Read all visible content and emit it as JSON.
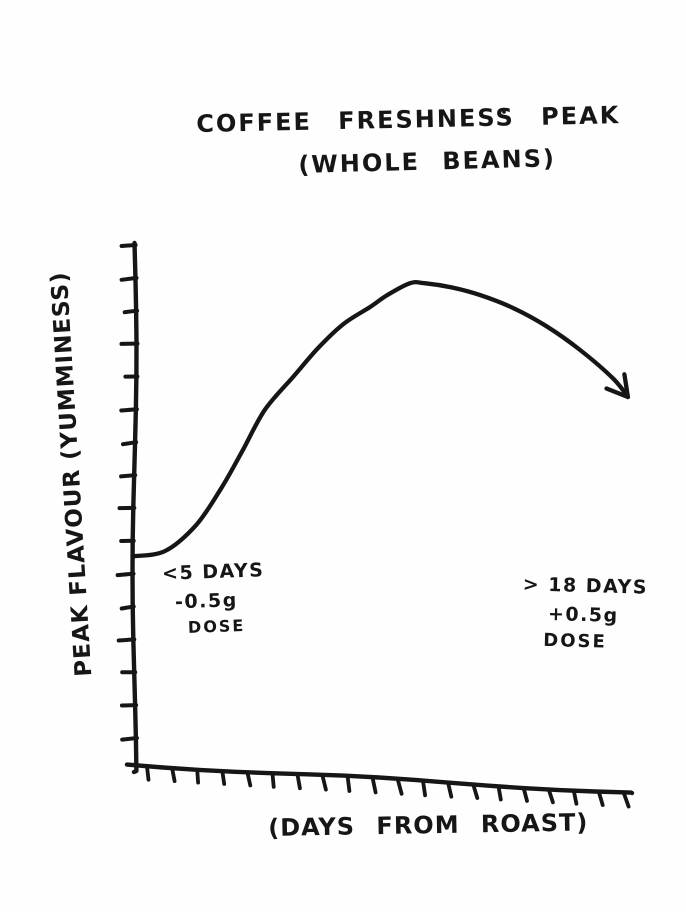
{
  "page": {
    "background": "#fefefe",
    "ink": "#161616"
  },
  "chart_data": {
    "type": "line",
    "style": "hand-drawn-marker-sketch",
    "title": "COFFEE FRESHNESS PEAK",
    "subtitle": "(WHOLE BEANS)",
    "xlabel": "(DAYS FROM ROAST)",
    "ylabel": "PEAK FLAVOUR (YUMMINESS)",
    "grid": false,
    "legend": false,
    "x_range_days": [
      0,
      24
    ],
    "y_range_yumminess": [
      0,
      1
    ],
    "x_tick_count": 20,
    "y_tick_count": 16,
    "x_tick_labels": [],
    "y_tick_labels": [],
    "series": [
      {
        "name": "coffee-freshness-curve",
        "ends_with_arrow": true,
        "x_days": [
          0,
          1.5,
          3,
          4.2,
          5.2,
          6.3,
          7.7,
          8.9,
          10.1,
          11.4,
          12.2,
          13.3,
          14.0,
          15.3,
          16.7,
          18.3,
          19.9,
          21.5,
          23.1,
          23.8
        ],
        "y_yumminess": [
          0.4,
          0.41,
          0.46,
          0.53,
          0.6,
          0.68,
          0.745,
          0.8,
          0.845,
          0.878,
          0.9,
          0.923,
          0.923,
          0.915,
          0.9,
          0.875,
          0.84,
          0.795,
          0.74,
          0.705
        ]
      }
    ],
    "annotations": [
      {
        "id": "early-dose",
        "lines": [
          "<5 DAYS",
          "-0.5g",
          "DOSE"
        ],
        "anchor_x_days": 2.5,
        "anchor_y_yumminess": 0.33
      },
      {
        "id": "late-dose",
        "lines": [
          "> 18 DAYS",
          "+0.5g",
          "DOSE"
        ],
        "anchor_x_days": 20.5,
        "anchor_y_yumminess": 0.31
      }
    ]
  }
}
